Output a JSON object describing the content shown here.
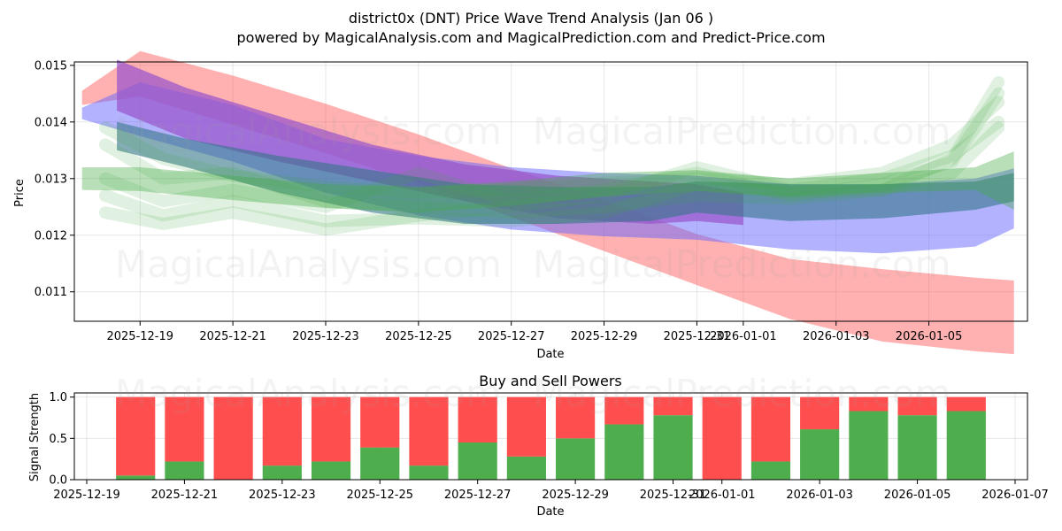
{
  "title_line1": "district0x (DNT) Price Wave Trend Analysis (Jan 06 )",
  "title_line2": "powered by MagicalAnalysis.com and MagicalPrediction.com and Predict-Price.com",
  "watermarks": [
    "MagicalAnalysis.com",
    "MagicalPrediction.com"
  ],
  "colors": {
    "red": "#ff4444",
    "green": "#44aa44",
    "blue": "#6666ff",
    "purple": "#9955cc",
    "teal": "#337788"
  },
  "chart_data": [
    {
      "type": "area",
      "title": "",
      "xlabel": "Date",
      "ylabel": "Price",
      "xlim": [
        "2025-12-17 14:00",
        "2026-01-07 03:00"
      ],
      "ylim": [
        0.01048,
        0.01506
      ],
      "x_ticks": [
        "2025-12-19",
        "2025-12-21",
        "2025-12-23",
        "2025-12-25",
        "2025-12-27",
        "2025-12-29",
        "2025-12-31",
        "2026-01-01",
        "2026-01-03",
        "2026-01-05"
      ],
      "y_ticks": [
        "0.011",
        "0.012",
        "0.013",
        "0.014",
        "0.015"
      ],
      "grid": true,
      "bands": [
        {
          "name": "red band",
          "color": "#ff4444",
          "opacity": 0.42,
          "x": [
            "2025-12-17 18:00",
            "2025-12-19 00:00",
            "2025-12-21 00:00",
            "2025-12-23 00:00",
            "2025-12-25 00:00",
            "2025-12-27 00:00",
            "2025-12-29 00:00",
            "2025-12-31 00:00",
            "2026-01-02 00:00",
            "2026-01-04 00:00",
            "2026-01-06 00:00",
            "2026-01-06 20:00"
          ],
          "upper": [
            0.01455,
            0.01525,
            0.01482,
            0.01432,
            0.01378,
            0.01318,
            0.01262,
            0.01202,
            0.01158,
            0.0114,
            0.01125,
            0.0112
          ],
          "lower": [
            0.0143,
            0.01445,
            0.01395,
            0.01345,
            0.01292,
            0.01232,
            0.01172,
            0.01112,
            0.01052,
            0.01012,
            0.00995,
            0.0099
          ]
        },
        {
          "name": "blue band",
          "color": "#6666ff",
          "opacity": 0.5,
          "x": [
            "2025-12-17 18:00",
            "2025-12-19 00:00",
            "2025-12-21 00:00",
            "2025-12-23 00:00",
            "2025-12-25 00:00",
            "2025-12-27 00:00",
            "2025-12-29 00:00",
            "2025-12-31 00:00",
            "2026-01-02 00:00",
            "2026-01-04 00:00",
            "2026-01-06 00:00",
            "2026-01-06 20:00"
          ],
          "upper": [
            0.01425,
            0.0147,
            0.0143,
            0.0137,
            0.0134,
            0.0132,
            0.0131,
            0.01305,
            0.0129,
            0.0129,
            0.013,
            0.01318
          ],
          "lower": [
            0.01405,
            0.01375,
            0.0133,
            0.01275,
            0.01235,
            0.0121,
            0.01198,
            0.01192,
            0.01175,
            0.01168,
            0.0118,
            0.01212
          ]
        },
        {
          "name": "purple band",
          "color": "#9955cc",
          "opacity": 0.72,
          "x": [
            "2025-12-18 12:00",
            "2025-12-20 00:00",
            "2025-12-22 00:00",
            "2025-12-24 00:00",
            "2025-12-26 00:00",
            "2025-12-28 00:00",
            "2025-12-30 00:00",
            "2025-12-31 00:00",
            "2026-01-01 00:00"
          ],
          "upper": [
            0.0151,
            0.0146,
            0.0141,
            0.0136,
            0.01325,
            0.01305,
            0.01295,
            0.0129,
            0.01275
          ],
          "lower": [
            0.0142,
            0.0137,
            0.0133,
            0.01295,
            0.0126,
            0.0123,
            0.0122,
            0.01225,
            0.01218
          ]
        },
        {
          "name": "teal band",
          "color": "#337788",
          "opacity": 0.6,
          "x": [
            "2025-12-18 12:00",
            "2025-12-20 00:00",
            "2025-12-22 00:00",
            "2025-12-24 00:00",
            "2025-12-26 00:00",
            "2025-12-28 00:00",
            "2025-12-30 00:00",
            "2025-12-31 00:00",
            "2026-01-02 00:00",
            "2026-01-04 00:00",
            "2026-01-06 00:00",
            "2026-01-06 20:00"
          ],
          "upper": [
            0.014,
            0.0137,
            0.0134,
            0.01315,
            0.0129,
            0.01285,
            0.01285,
            0.01295,
            0.0129,
            0.0129,
            0.01295,
            0.0131
          ],
          "lower": [
            0.0135,
            0.0132,
            0.01275,
            0.0124,
            0.0122,
            0.0122,
            0.01225,
            0.0124,
            0.01225,
            0.0123,
            0.01245,
            0.0126
          ]
        },
        {
          "name": "green band",
          "color": "#44aa44",
          "opacity": 0.38,
          "x": [
            "2025-12-17 18:00",
            "2025-12-19 00:00",
            "2025-12-21 00:00",
            "2025-12-23 00:00",
            "2025-12-25 00:00",
            "2025-12-27 00:00",
            "2025-12-29 00:00",
            "2025-12-31 00:00",
            "2026-01-02 00:00",
            "2026-01-04 00:00",
            "2026-01-06 00:00",
            "2026-01-06 20:00"
          ],
          "upper": [
            0.0132,
            0.0132,
            0.01305,
            0.0129,
            0.01285,
            0.01295,
            0.0131,
            0.01315,
            0.013,
            0.0131,
            0.0132,
            0.01348
          ],
          "lower": [
            0.0128,
            0.01278,
            0.01262,
            0.01248,
            0.0124,
            0.01252,
            0.01268,
            0.01278,
            0.01268,
            0.01275,
            0.0128,
            0.01245
          ]
        }
      ],
      "wave_lines": [
        {
          "color": "#44aa44",
          "x": [
            "2025-12-18 06:00",
            "2025-12-19 12:00",
            "2025-12-21 00:00",
            "2025-12-23 00:00",
            "2025-12-25 00:00",
            "2025-12-27 00:00",
            "2025-12-29 00:00",
            "2025-12-31 00:00",
            "2026-01-02 00:00",
            "2026-01-04 00:00",
            "2026-01-05 12:00",
            "2026-01-06 12:00"
          ],
          "y": [
            0.0139,
            0.01335,
            0.01305,
            0.01285,
            0.01275,
            0.0128,
            0.01292,
            0.013,
            0.0129,
            0.0131,
            0.0136,
            0.01435
          ]
        },
        {
          "color": "#44aa44",
          "x": [
            "2025-12-18 06:00",
            "2025-12-19 12:00",
            "2025-12-21 00:00",
            "2025-12-23 00:00",
            "2025-12-25 00:00",
            "2025-12-27 00:00",
            "2025-12-29 00:00",
            "2025-12-31 00:00",
            "2026-01-02 00:00",
            "2026-01-04 00:00",
            "2026-01-05 12:00",
            "2026-01-06 12:00"
          ],
          "y": [
            0.0124,
            0.0122,
            0.0124,
            0.0121,
            0.01235,
            0.0125,
            0.0127,
            0.0132,
            0.0128,
            0.013,
            0.0134,
            0.014
          ]
        },
        {
          "color": "#44aa44",
          "x": [
            "2025-12-18 06:00",
            "2025-12-19 12:00",
            "2025-12-21 00:00",
            "2025-12-23 00:00",
            "2025-12-25 00:00",
            "2025-12-27 00:00",
            "2025-12-29 00:00",
            "2025-12-31 00:00",
            "2026-01-02 00:00",
            "2026-01-04 00:00",
            "2026-01-05 12:00",
            "2026-01-06 12:00"
          ],
          "y": [
            0.013,
            0.0126,
            0.0128,
            0.0125,
            0.0131,
            0.0126,
            0.0128,
            0.0131,
            0.0127,
            0.0129,
            0.0133,
            0.0145
          ]
        },
        {
          "color": "#44aa44",
          "x": [
            "2025-12-18 06:00",
            "2025-12-19 12:00",
            "2025-12-21 00:00",
            "2025-12-23 00:00",
            "2025-12-25 00:00",
            "2025-12-27 00:00",
            "2025-12-29 00:00",
            "2025-12-31 00:00",
            "2026-01-02 00:00",
            "2026-01-04 00:00",
            "2026-01-05 12:00",
            "2026-01-06 12:00"
          ],
          "y": [
            0.0127,
            0.01235,
            0.0126,
            0.01225,
            0.0123,
            0.01225,
            0.0124,
            0.0129,
            0.01275,
            0.0128,
            0.0131,
            0.0139
          ]
        },
        {
          "color": "#44aa44",
          "x": [
            "2025-12-18 06:00",
            "2025-12-19 12:00",
            "2025-12-21 00:00",
            "2025-12-23 00:00",
            "2025-12-25 00:00",
            "2025-12-27 00:00",
            "2025-12-29 00:00",
            "2025-12-31 00:00",
            "2026-01-02 00:00",
            "2026-01-04 00:00",
            "2026-01-05 12:00",
            "2026-01-06 12:00"
          ],
          "y": [
            0.0136,
            0.013,
            0.0131,
            0.0126,
            0.0125,
            0.0124,
            0.0125,
            0.0127,
            0.01265,
            0.0128,
            0.01335,
            0.0147
          ]
        }
      ]
    },
    {
      "type": "bar",
      "title": "Buy and Sell Powers",
      "xlabel": "Date",
      "ylabel": "Signal Strength",
      "xlim": [
        "2025-12-19",
        "2026-01-07"
      ],
      "ylim": [
        0,
        1.05
      ],
      "x_ticks": [
        "2025-12-19",
        "2025-12-21",
        "2025-12-23",
        "2025-12-25",
        "2025-12-27",
        "2025-12-29",
        "2025-12-31",
        "2026-01-01",
        "2026-01-03",
        "2026-01-05",
        "2026-01-07"
      ],
      "y_ticks": [
        "0.0",
        "0.5",
        "1.0"
      ],
      "categories": [
        "2025-12-20",
        "2025-12-21",
        "2025-12-22",
        "2025-12-23",
        "2025-12-24",
        "2025-12-25",
        "2025-12-26",
        "2025-12-27",
        "2025-12-28",
        "2025-12-29",
        "2025-12-30",
        "2025-12-31",
        "2026-01-01",
        "2026-01-02",
        "2026-01-03",
        "2026-01-04",
        "2026-01-05",
        "2026-01-06"
      ],
      "series": [
        {
          "name": "Buy",
          "color": "#44aa44",
          "values": [
            0.05,
            0.22,
            0.0,
            0.17,
            0.22,
            0.39,
            0.17,
            0.45,
            0.28,
            0.5,
            0.67,
            0.78,
            0.0,
            0.22,
            0.61,
            0.83,
            0.78,
            0.83
          ]
        },
        {
          "name": "Sell",
          "color": "#ff4444",
          "values": [
            0.95,
            0.78,
            1.0,
            0.83,
            0.78,
            0.61,
            0.83,
            0.55,
            0.72,
            0.5,
            0.33,
            0.22,
            1.0,
            0.78,
            0.39,
            0.17,
            0.22,
            0.17
          ]
        }
      ]
    }
  ]
}
